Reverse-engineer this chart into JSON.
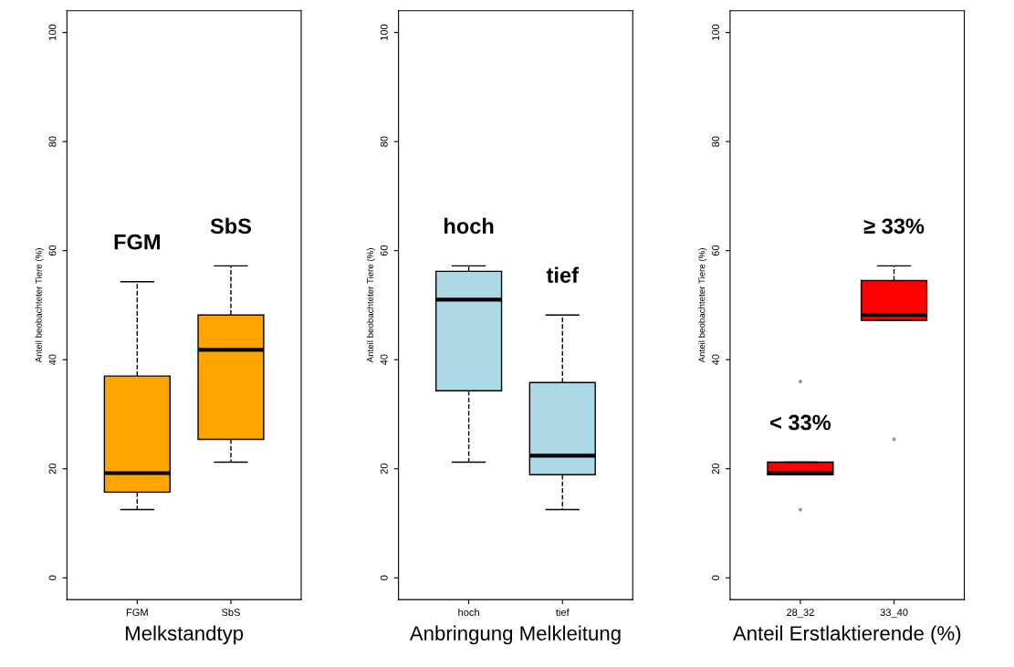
{
  "chart_data": [
    {
      "type": "box",
      "categories": [
        "FGM",
        "SbS"
      ],
      "color": "#ffa500",
      "xlabel": "Melkstandtyp",
      "ylabel": "Anteil beobachteter Tiere (%)",
      "ylim": [
        -4,
        104
      ],
      "yticks": [
        0,
        20,
        40,
        60,
        80,
        100
      ],
      "boxes": [
        {
          "low": 12.5,
          "q1": 15.7,
          "median": 19.2,
          "q3": 37.0,
          "high": 54.3
        },
        {
          "low": 21.2,
          "q1": 25.4,
          "median": 41.8,
          "q3": 48.2,
          "high": 57.2
        }
      ],
      "annotations": [
        "FGM",
        "SbS"
      ]
    },
    {
      "type": "box",
      "categories": [
        "hoch",
        "tief"
      ],
      "color": "#add8e6",
      "xlabel": "Anbringung Melkleitung",
      "ylabel": "Anteil beobachteter Tiere (%)",
      "ylim": [
        -4,
        104
      ],
      "yticks": [
        0,
        20,
        40,
        60,
        80,
        100
      ],
      "boxes": [
        {
          "low": 21.2,
          "q1": 34.3,
          "median": 51.0,
          "q3": 56.2,
          "high": 57.2
        },
        {
          "low": 12.5,
          "q1": 18.9,
          "median": 22.4,
          "q3": 35.8,
          "high": 48.2
        }
      ],
      "annotations": [
        "hoch",
        "tief"
      ]
    },
    {
      "type": "box",
      "categories": [
        "28_32",
        "33_40"
      ],
      "color": "#ff0000",
      "xlabel": "Anteil Erstlaktierende (%)",
      "ylabel": "Anteil beobachteter Tiere (%)",
      "ylim": [
        -4,
        104
      ],
      "yticks": [
        0,
        20,
        40,
        60,
        80,
        100
      ],
      "boxes": [
        {
          "low": 18.9,
          "q1": 18.9,
          "median": 19.2,
          "q3": 21.2,
          "high": 21.2,
          "outliers": [
            36.0,
            12.5
          ]
        },
        {
          "low": 47.2,
          "q1": 47.2,
          "median": 48.2,
          "q3": 54.5,
          "high": 57.2,
          "outliers": [
            25.4
          ]
        }
      ],
      "annotations": [
        "< 33%",
        "≥ 33%"
      ]
    }
  ]
}
